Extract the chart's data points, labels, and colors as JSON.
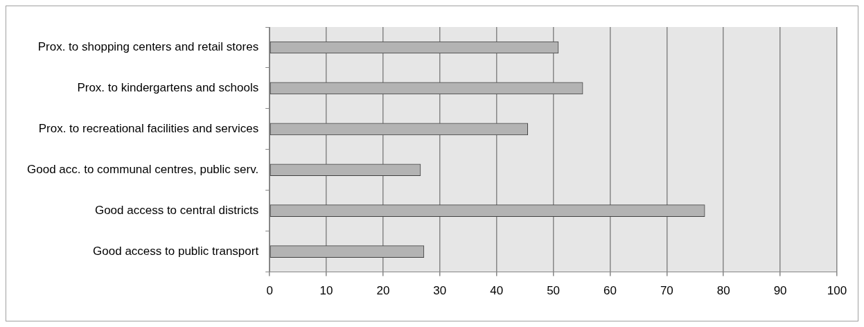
{
  "chart_data": {
    "type": "bar",
    "orientation": "horizontal",
    "categories": [
      "Prox. to shopping centers and retail stores",
      "Prox. to kindergartens and schools",
      "Prox. to recreational facilities and services",
      "Good acc. to communal centres, public serv.",
      "Good access to central districts",
      "Good access to public transport"
    ],
    "values": [
      50.9,
      55.2,
      45.5,
      26.6,
      76.7,
      27.2
    ],
    "color": "#b3b3b3",
    "xlim": [
      0,
      100
    ],
    "xticks": [
      0,
      10,
      20,
      30,
      40,
      50,
      60,
      70,
      80,
      90,
      100
    ],
    "grid": "x",
    "legend": false
  }
}
